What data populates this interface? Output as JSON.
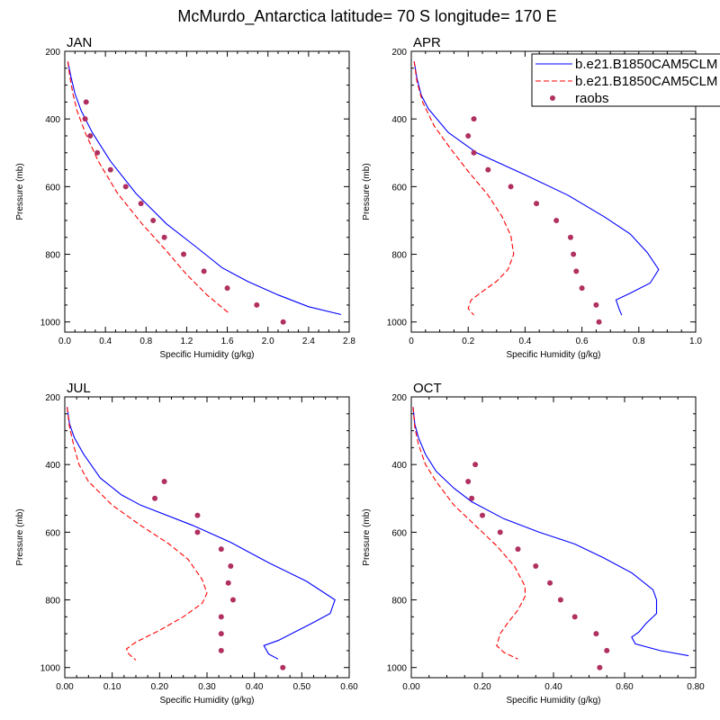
{
  "figure_title": "McMurdo_Antarctica  latitude= 70 S longitude= 170 E",
  "colors": {
    "model1": "#0000ff",
    "model2": "#ff0000",
    "raobs": "#b03060"
  },
  "legend": {
    "location": "top-right of APR panel",
    "items": [
      {
        "label": "b.e21.B1850CAM5CLM",
        "style": "solid-line",
        "color": "#0000ff"
      },
      {
        "label": "b.e21.B1850CAM5CLM",
        "style": "dashed-line",
        "color": "#ff0000"
      },
      {
        "label": "raobs",
        "style": "dot",
        "color": "#b03060"
      }
    ]
  },
  "chart_data": [
    {
      "type": "line",
      "title": "JAN",
      "xlabel": "Specific Humidity (g/kg)",
      "ylabel": "Pressure (mb)",
      "xlim": [
        0,
        2.8
      ],
      "ylim": [
        1030,
        200
      ],
      "y_reversed": true,
      "xticks": [
        "0.0",
        "0.4",
        "0.8",
        "1.2",
        "1.6",
        "2.0",
        "2.4",
        "2.8"
      ],
      "yticks": [
        "200",
        "400",
        "600",
        "800",
        "1000"
      ],
      "series": [
        {
          "name": "b.e21.B1850CAM5CLM",
          "style": "solid",
          "points": [
            [
              0.03,
              230
            ],
            [
              0.06,
              275
            ],
            [
              0.1,
              325
            ],
            [
              0.16,
              375
            ],
            [
              0.27,
              440
            ],
            [
              0.45,
              525
            ],
            [
              0.7,
              620
            ],
            [
              1.0,
              710
            ],
            [
              1.3,
              780
            ],
            [
              1.55,
              840
            ],
            [
              1.8,
              880
            ],
            [
              2.1,
              920
            ],
            [
              2.4,
              955
            ],
            [
              2.72,
              978
            ]
          ]
        },
        {
          "name": "b.e21.B1850CAM5CLM",
          "style": "dashed",
          "points": [
            [
              0.03,
              230
            ],
            [
              0.05,
              275
            ],
            [
              0.08,
              325
            ],
            [
              0.12,
              375
            ],
            [
              0.2,
              440
            ],
            [
              0.33,
              525
            ],
            [
              0.52,
              620
            ],
            [
              0.76,
              710
            ],
            [
              1.0,
              790
            ],
            [
              1.2,
              860
            ],
            [
              1.4,
              920
            ],
            [
              1.62,
              975
            ]
          ]
        },
        {
          "name": "raobs",
          "style": "dots",
          "points": [
            [
              0.21,
              350
            ],
            [
              0.2,
              400
            ],
            [
              0.25,
              450
            ],
            [
              0.32,
              500
            ],
            [
              0.45,
              550
            ],
            [
              0.6,
              600
            ],
            [
              0.75,
              650
            ],
            [
              0.87,
              700
            ],
            [
              0.98,
              750
            ],
            [
              1.17,
              800
            ],
            [
              1.37,
              850
            ],
            [
              1.6,
              900
            ],
            [
              1.89,
              950
            ],
            [
              2.15,
              1000
            ]
          ]
        }
      ]
    },
    {
      "type": "line",
      "title": "APR",
      "xlabel": "Specific Humidity (g/kg)",
      "ylabel": "Pressure (mb)",
      "xlim": [
        0,
        1.0
      ],
      "ylim": [
        1030,
        200
      ],
      "y_reversed": true,
      "xticks": [
        "0",
        "0.2",
        "0.4",
        "0.6",
        "0.8",
        "1.0"
      ],
      "yticks": [
        "200",
        "400",
        "600",
        "800",
        "1000"
      ],
      "series": [
        {
          "name": "b.e21.B1850CAM5CLM",
          "style": "solid",
          "points": [
            [
              0.01,
              230
            ],
            [
              0.02,
              280
            ],
            [
              0.035,
              330
            ],
            [
              0.06,
              370
            ],
            [
              0.13,
              440
            ],
            [
              0.23,
              500
            ],
            [
              0.4,
              565
            ],
            [
              0.55,
              625
            ],
            [
              0.68,
              690
            ],
            [
              0.77,
              740
            ],
            [
              0.83,
              795
            ],
            [
              0.87,
              845
            ],
            [
              0.84,
              885
            ],
            [
              0.77,
              915
            ],
            [
              0.72,
              935
            ],
            [
              0.73,
              960
            ],
            [
              0.74,
              980
            ]
          ]
        },
        {
          "name": "b.e21.B1850CAM5CLM",
          "style": "dashed",
          "points": [
            [
              0.01,
              230
            ],
            [
              0.02,
              290
            ],
            [
              0.04,
              350
            ],
            [
              0.08,
              420
            ],
            [
              0.14,
              490
            ],
            [
              0.2,
              555
            ],
            [
              0.27,
              625
            ],
            [
              0.32,
              690
            ],
            [
              0.35,
              745
            ],
            [
              0.36,
              800
            ],
            [
              0.34,
              845
            ],
            [
              0.3,
              880
            ],
            [
              0.25,
              910
            ],
            [
              0.21,
              935
            ],
            [
              0.2,
              960
            ],
            [
              0.22,
              980
            ]
          ]
        },
        {
          "name": "raobs",
          "style": "dots",
          "points": [
            [
              0.22,
              400
            ],
            [
              0.2,
              450
            ],
            [
              0.22,
              500
            ],
            [
              0.27,
              550
            ],
            [
              0.35,
              600
            ],
            [
              0.44,
              650
            ],
            [
              0.51,
              700
            ],
            [
              0.56,
              750
            ],
            [
              0.57,
              800
            ],
            [
              0.58,
              850
            ],
            [
              0.6,
              900
            ],
            [
              0.65,
              950
            ],
            [
              0.66,
              1000
            ]
          ]
        }
      ]
    },
    {
      "type": "line",
      "title": "JUL",
      "xlabel": "Specific Humidity (g/kg)",
      "ylabel": "Pressure (mb)",
      "xlim": [
        0,
        0.6
      ],
      "ylim": [
        1030,
        200
      ],
      "y_reversed": true,
      "xticks": [
        "0.00",
        "0.10",
        "0.20",
        "0.30",
        "0.40",
        "0.50",
        "0.60"
      ],
      "yticks": [
        "200",
        "400",
        "600",
        "800",
        "1000"
      ],
      "series": [
        {
          "name": "b.e21.B1850CAM5CLM",
          "style": "solid",
          "points": [
            [
              0.005,
              230
            ],
            [
              0.01,
              280
            ],
            [
              0.02,
              320
            ],
            [
              0.04,
              370
            ],
            [
              0.075,
              440
            ],
            [
              0.12,
              490
            ],
            [
              0.16,
              520
            ],
            [
              0.27,
              580
            ],
            [
              0.35,
              630
            ],
            [
              0.43,
              690
            ],
            [
              0.51,
              745
            ],
            [
              0.57,
              800
            ],
            [
              0.56,
              840
            ],
            [
              0.52,
              870
            ],
            [
              0.45,
              920
            ],
            [
              0.42,
              935
            ],
            [
              0.43,
              960
            ],
            [
              0.45,
              975
            ]
          ]
        },
        {
          "name": "b.e21.B1850CAM5CLM",
          "style": "dashed",
          "points": [
            [
              0.005,
              230
            ],
            [
              0.01,
              290
            ],
            [
              0.02,
              350
            ],
            [
              0.03,
              400
            ],
            [
              0.05,
              450
            ],
            [
              0.1,
              520
            ],
            [
              0.16,
              580
            ],
            [
              0.22,
              635
            ],
            [
              0.26,
              680
            ],
            [
              0.29,
              740
            ],
            [
              0.3,
              780
            ],
            [
              0.29,
              810
            ],
            [
              0.25,
              850
            ],
            [
              0.2,
              890
            ],
            [
              0.15,
              925
            ],
            [
              0.13,
              945
            ],
            [
              0.135,
              960
            ],
            [
              0.15,
              978
            ]
          ]
        },
        {
          "name": "raobs",
          "style": "dots",
          "points": [
            [
              0.21,
              450
            ],
            [
              0.19,
              500
            ],
            [
              0.28,
              550
            ],
            [
              0.28,
              600
            ],
            [
              0.33,
              650
            ],
            [
              0.35,
              700
            ],
            [
              0.345,
              750
            ],
            [
              0.355,
              800
            ],
            [
              0.33,
              850
            ],
            [
              0.33,
              900
            ],
            [
              0.33,
              950
            ],
            [
              0.46,
              1000
            ]
          ]
        }
      ]
    },
    {
      "type": "line",
      "title": "OCT",
      "xlabel": "Specific Humidity (g/kg)",
      "ylabel": "Pressure (mb)",
      "xlim": [
        0,
        0.8
      ],
      "ylim": [
        1030,
        200
      ],
      "y_reversed": true,
      "xticks": [
        "0.00",
        "0.20",
        "0.40",
        "0.60",
        "0.80"
      ],
      "yticks": [
        "200",
        "400",
        "600",
        "800",
        "1000"
      ],
      "series": [
        {
          "name": "b.e21.B1850CAM5CLM",
          "style": "solid",
          "points": [
            [
              0.005,
              230
            ],
            [
              0.01,
              280
            ],
            [
              0.02,
              320
            ],
            [
              0.04,
              370
            ],
            [
              0.07,
              420
            ],
            [
              0.12,
              470
            ],
            [
              0.17,
              510
            ],
            [
              0.26,
              560
            ],
            [
              0.36,
              600
            ],
            [
              0.46,
              635
            ],
            [
              0.54,
              675
            ],
            [
              0.62,
              720
            ],
            [
              0.68,
              770
            ],
            [
              0.69,
              800
            ],
            [
              0.69,
              840
            ],
            [
              0.66,
              870
            ],
            [
              0.64,
              895
            ],
            [
              0.62,
              910
            ],
            [
              0.63,
              930
            ],
            [
              0.7,
              950
            ],
            [
              0.78,
              965
            ]
          ]
        },
        {
          "name": "b.e21.B1850CAM5CLM",
          "style": "dashed",
          "points": [
            [
              0.005,
              230
            ],
            [
              0.01,
              290
            ],
            [
              0.02,
              340
            ],
            [
              0.04,
              400
            ],
            [
              0.07,
              450
            ],
            [
              0.12,
              520
            ],
            [
              0.18,
              580
            ],
            [
              0.24,
              640
            ],
            [
              0.29,
              700
            ],
            [
              0.32,
              760
            ],
            [
              0.32,
              790
            ],
            [
              0.3,
              830
            ],
            [
              0.27,
              870
            ],
            [
              0.25,
              900
            ],
            [
              0.24,
              935
            ],
            [
              0.26,
              955
            ],
            [
              0.3,
              975
            ]
          ]
        },
        {
          "name": "raobs",
          "style": "dots",
          "points": [
            [
              0.18,
              400
            ],
            [
              0.16,
              450
            ],
            [
              0.17,
              500
            ],
            [
              0.2,
              550
            ],
            [
              0.25,
              600
            ],
            [
              0.3,
              650
            ],
            [
              0.35,
              700
            ],
            [
              0.39,
              750
            ],
            [
              0.42,
              800
            ],
            [
              0.46,
              850
            ],
            [
              0.52,
              900
            ],
            [
              0.55,
              950
            ],
            [
              0.53,
              1000
            ]
          ]
        }
      ]
    }
  ]
}
